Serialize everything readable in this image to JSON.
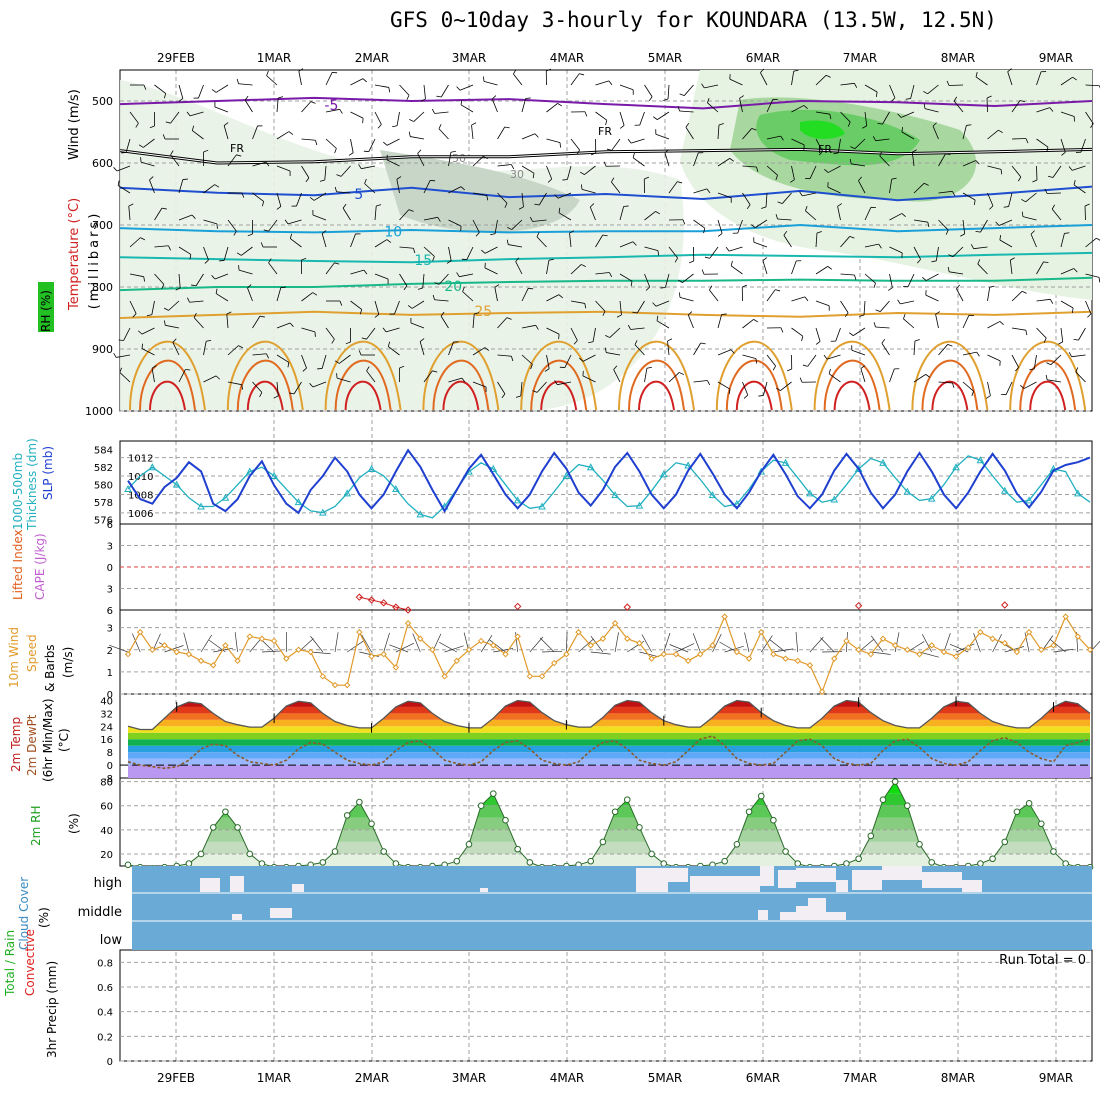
{
  "title": "GFS 0~10day 3-hourly for KOUNDARA (13.5W, 12.5N)",
  "date_labels": [
    "29FEB",
    "1MAR",
    "2MAR",
    "3MAR",
    "4MAR",
    "5MAR",
    "6MAR",
    "7MAR",
    "8MAR",
    "9MAR"
  ],
  "colors": {
    "grid": "#a0a0a0",
    "slp": "#1f3fd0",
    "thickness": "#22b0c0",
    "wind10": "#e09a2a",
    "rh_green": "#22c022",
    "cloud": "#6aaad6",
    "cloud_clear": "#f2eef4",
    "temp_violet": "#7a1aa8",
    "temp_blue": "#1f4fd0",
    "temp_cyan": "#1aa0d8",
    "temp_teal": "#18b8b0",
    "temp_green": "#18b888",
    "temp_orange": "#e0a030",
    "temp_red": "#d02020"
  },
  "chart_data": [
    {
      "type": "heatmap",
      "name": "upper-air cross section",
      "ylabel": "(millibars)",
      "side_labels": [
        "Wind (m/s)",
        "Temperature (°C)",
        "RH (%)"
      ],
      "yticks": [
        500,
        600,
        700,
        800,
        900,
        1000
      ],
      "ylim": [
        1000,
        450
      ],
      "freezing_label": "FR",
      "rh_labels": [
        "50",
        "30"
      ],
      "isotherms": [
        {
          "label": "-5",
          "pressure": [
            505,
            500,
            495,
            500,
            497,
            505,
            512,
            500,
            502,
            508,
            500
          ]
        },
        {
          "label": "5",
          "pressure": [
            640,
            648,
            652,
            640,
            655,
            650,
            658,
            645,
            660,
            650,
            638
          ]
        },
        {
          "label": "10",
          "pressure": [
            705,
            710,
            712,
            708,
            712,
            710,
            710,
            700,
            710,
            705,
            700
          ]
        },
        {
          "label": "15",
          "pressure": [
            752,
            755,
            758,
            760,
            755,
            752,
            748,
            750,
            752,
            748,
            745
          ]
        },
        {
          "label": "20",
          "pressure": [
            805,
            800,
            800,
            795,
            792,
            790,
            790,
            788,
            790,
            790,
            785
          ]
        },
        {
          "label": "25",
          "pressure": [
            850,
            845,
            840,
            845,
            842,
            840,
            845,
            848,
            842,
            845,
            840
          ]
        }
      ],
      "freezing_level": [
        580,
        600,
        598,
        590,
        590,
        582,
        580,
        578,
        585,
        582,
        578
      ]
    },
    {
      "type": "line",
      "name": "slp-thickness",
      "side_labels": [
        "1000-500mb",
        "Thickness (dm)",
        "SLP (mb)"
      ],
      "series": [
        {
          "name": "SLP (mb)",
          "axis": "right",
          "ylim": [
            1004.8,
            1013.8
          ],
          "yticks": [
            1006,
            1008,
            1010,
            1012
          ],
          "values": [
            1009.5,
            1007.5,
            1007,
            1008.8,
            1009.8,
            1011.5,
            1010.5,
            1007,
            1006.2,
            1007.5,
            1010,
            1011.6,
            1009,
            1007,
            1006,
            1008.5,
            1010,
            1012,
            1010.5,
            1008,
            1006.5,
            1008,
            1010.5,
            1012.8,
            1011,
            1008.5,
            1006.2,
            1008.5,
            1010.8,
            1012.3,
            1010.2,
            1008,
            1006.5,
            1008,
            1010.5,
            1012.5,
            1010.8,
            1008.2,
            1006.8,
            1008.5,
            1011,
            1012.5,
            1010.5,
            1008,
            1006.5,
            1008,
            1010.6,
            1012.4,
            1010.3,
            1008,
            1006.5,
            1008.2,
            1010.5,
            1012.3,
            1010.2,
            1007.8,
            1006.5,
            1008,
            1010.6,
            1012.4,
            1010.8,
            1008.2,
            1006.5,
            1008,
            1010.5,
            1012.5,
            1010.5,
            1008,
            1006.5,
            1008.2,
            1010.5,
            1012.4,
            1010.6,
            1008.1,
            1006.6,
            1008.3,
            1010.6,
            1011.2,
            1011.5,
            1012
          ]
        },
        {
          "name": "1000-500mb Thickness (dm)",
          "axis": "left",
          "ylim": [
            575.5,
            585
          ],
          "yticks": [
            576,
            578,
            580,
            582,
            584
          ],
          "values": [
            579.5,
            581,
            582,
            581,
            580,
            578.5,
            577.5,
            577.5,
            578.5,
            580,
            581.5,
            582,
            581,
            579.5,
            578,
            577,
            576.8,
            577.5,
            579,
            580.8,
            581.8,
            581,
            579.5,
            577.8,
            576.6,
            576.2,
            577.5,
            579.5,
            581.5,
            582.5,
            581.8,
            580,
            578.2,
            577.3,
            577.5,
            579.2,
            581,
            582.3,
            582,
            580.5,
            578.8,
            577.5,
            577.6,
            579.3,
            581.2,
            582.5,
            582.2,
            580.6,
            578.8,
            577.5,
            577.8,
            579.5,
            581.5,
            582.8,
            582.5,
            580.8,
            579,
            578,
            578.3,
            580,
            581.8,
            583,
            582.5,
            580.8,
            579.2,
            578.2,
            578.4,
            580,
            582,
            583.3,
            582.8,
            581,
            579.3,
            578,
            578.2,
            580,
            581.8,
            581.5,
            579,
            578
          ]
        }
      ]
    },
    {
      "type": "line",
      "name": "cape-lifted-index",
      "side_labels": [
        "Lifted Index",
        "CAPE (J/kg)"
      ],
      "ylim": [
        6,
        -6
      ],
      "yticks": [
        -6,
        -3,
        0,
        3,
        6
      ],
      "zero_line": 0,
      "x": [
        19,
        20,
        21,
        22,
        23,
        32,
        41,
        60,
        72,
        81,
        82,
        83,
        84,
        85,
        86,
        87
      ],
      "values": [
        4.2,
        4.6,
        5,
        5.6,
        6,
        5.5,
        5.6,
        5.4,
        5.3,
        5.8,
        4.8,
        4.3,
        3.8,
        5,
        3.5,
        3.9
      ]
    },
    {
      "type": "line",
      "name": "wind-10m",
      "side_labels": [
        "10m Wind",
        "Speed",
        "& Barbs",
        "(m/s)"
      ],
      "ylim": [
        0,
        3.8
      ],
      "yticks": [
        0,
        1,
        2,
        3
      ],
      "values": [
        1.8,
        2.8,
        2,
        2.2,
        1.9,
        1.8,
        1.5,
        1.3,
        2.2,
        1.5,
        2.6,
        2.5,
        2.4,
        1.6,
        2,
        1.9,
        0.8,
        0.4,
        0.4,
        2.8,
        1.7,
        1.8,
        1.2,
        3.2,
        2.5,
        2,
        0.8,
        1.5,
        2,
        2.4,
        2.2,
        1.8,
        2.6,
        0.8,
        0.8,
        1.4,
        1.8,
        2.8,
        2.2,
        2.5,
        3.2,
        2.5,
        2.3,
        1.6,
        1.8,
        1.8,
        1.5,
        1.8,
        2.2,
        3.5,
        1.9,
        1.6,
        2.8,
        1.8,
        1.6,
        1.5,
        1.3,
        0.1,
        1.6,
        2.4,
        2,
        1.8,
        2.5,
        2.2,
        2,
        1.8,
        2.2,
        1.9,
        1.7,
        2.1,
        2.8,
        2.5,
        2.3,
        1.9,
        2.8,
        2,
        2.2,
        3.5,
        2.6,
        2
      ]
    },
    {
      "type": "area",
      "name": "temperature-2m",
      "side_labels": [
        "2m Temp",
        "2m DewPt",
        "(6hr Min/Max)",
        "(°C)"
      ],
      "ylim": [
        -8,
        44
      ],
      "yticks": [
        -8,
        0,
        8,
        16,
        24,
        32,
        40
      ],
      "temperature": [
        24,
        22,
        22,
        29,
        36,
        39,
        38,
        32,
        27,
        25,
        23.5,
        23.5,
        29,
        36.5,
        39.5,
        38.5,
        32,
        27,
        24.5,
        23,
        23,
        29,
        36,
        39.5,
        38.5,
        32,
        27,
        24.5,
        23,
        23,
        29,
        36.5,
        40,
        39,
        32.5,
        27.5,
        25,
        23.5,
        23.5,
        29.5,
        37,
        40,
        39,
        32.5,
        27.5,
        25,
        23.5,
        23.5,
        29.5,
        36.5,
        40,
        39,
        32.5,
        27.5,
        24.5,
        23,
        23,
        29,
        36.5,
        40,
        39,
        32.5,
        27.5,
        24.5,
        23,
        23,
        29,
        36,
        39.5,
        38.5,
        32,
        27,
        24.5,
        23,
        23,
        29,
        36,
        39.5,
        38,
        32
      ],
      "dewpoint": [
        2,
        0,
        -1,
        -2,
        -1,
        3,
        10,
        13,
        12,
        6,
        2,
        1,
        0,
        3,
        10,
        14,
        13,
        8,
        3,
        1,
        0,
        2,
        9,
        14,
        15,
        10,
        3,
        1,
        0,
        2,
        9,
        14,
        15,
        10,
        3,
        1,
        0,
        2,
        9,
        14,
        15,
        10,
        3,
        1,
        0,
        2,
        9,
        16,
        18,
        12,
        4,
        1,
        0,
        1,
        8,
        15,
        16,
        12,
        4,
        1,
        0,
        1,
        9,
        15,
        16,
        11,
        4,
        1,
        0,
        2,
        9,
        15,
        17,
        14,
        8,
        4,
        2,
        12,
        14,
        16
      ]
    },
    {
      "type": "area",
      "name": "rh-2m",
      "side_labels": [
        "2m RH",
        "(%)"
      ],
      "ylim": [
        10,
        83
      ],
      "yticks": [
        20,
        40,
        60,
        80
      ],
      "values": [
        11,
        9,
        8,
        9,
        10,
        12,
        20,
        42,
        55,
        42,
        20,
        12,
        9,
        9,
        10,
        11,
        13,
        22,
        52,
        63,
        45,
        22,
        12,
        9,
        9,
        10,
        11,
        14,
        28,
        60,
        70,
        48,
        24,
        13,
        9,
        9,
        10,
        11,
        14,
        30,
        55,
        65,
        42,
        20,
        12,
        9,
        9,
        10,
        11,
        14,
        28,
        55,
        68,
        48,
        22,
        12,
        9,
        9,
        10,
        12,
        16,
        35,
        65,
        80,
        60,
        28,
        13,
        9,
        9,
        10,
        12,
        16,
        30,
        55,
        62,
        45,
        22,
        12,
        9,
        9
      ]
    },
    {
      "type": "heatmap",
      "name": "cloud-cover",
      "side_labels": [
        "Cloud Cover",
        "(%)"
      ],
      "levels": [
        "high",
        "middle",
        "low"
      ]
    },
    {
      "type": "bar",
      "name": "precipitation",
      "side_labels": [
        "Total / Rain",
        "Convective",
        "3hr Precip (mm)"
      ],
      "ylim": [
        0,
        0.9
      ],
      "yticks": [
        0,
        0.2,
        0.4,
        0.6,
        0.8
      ],
      "yticklabels": [
        "0",
        "0.2",
        "0.4",
        "0.6",
        "0.8"
      ],
      "annotation": "Run Total = 0",
      "values": []
    }
  ]
}
